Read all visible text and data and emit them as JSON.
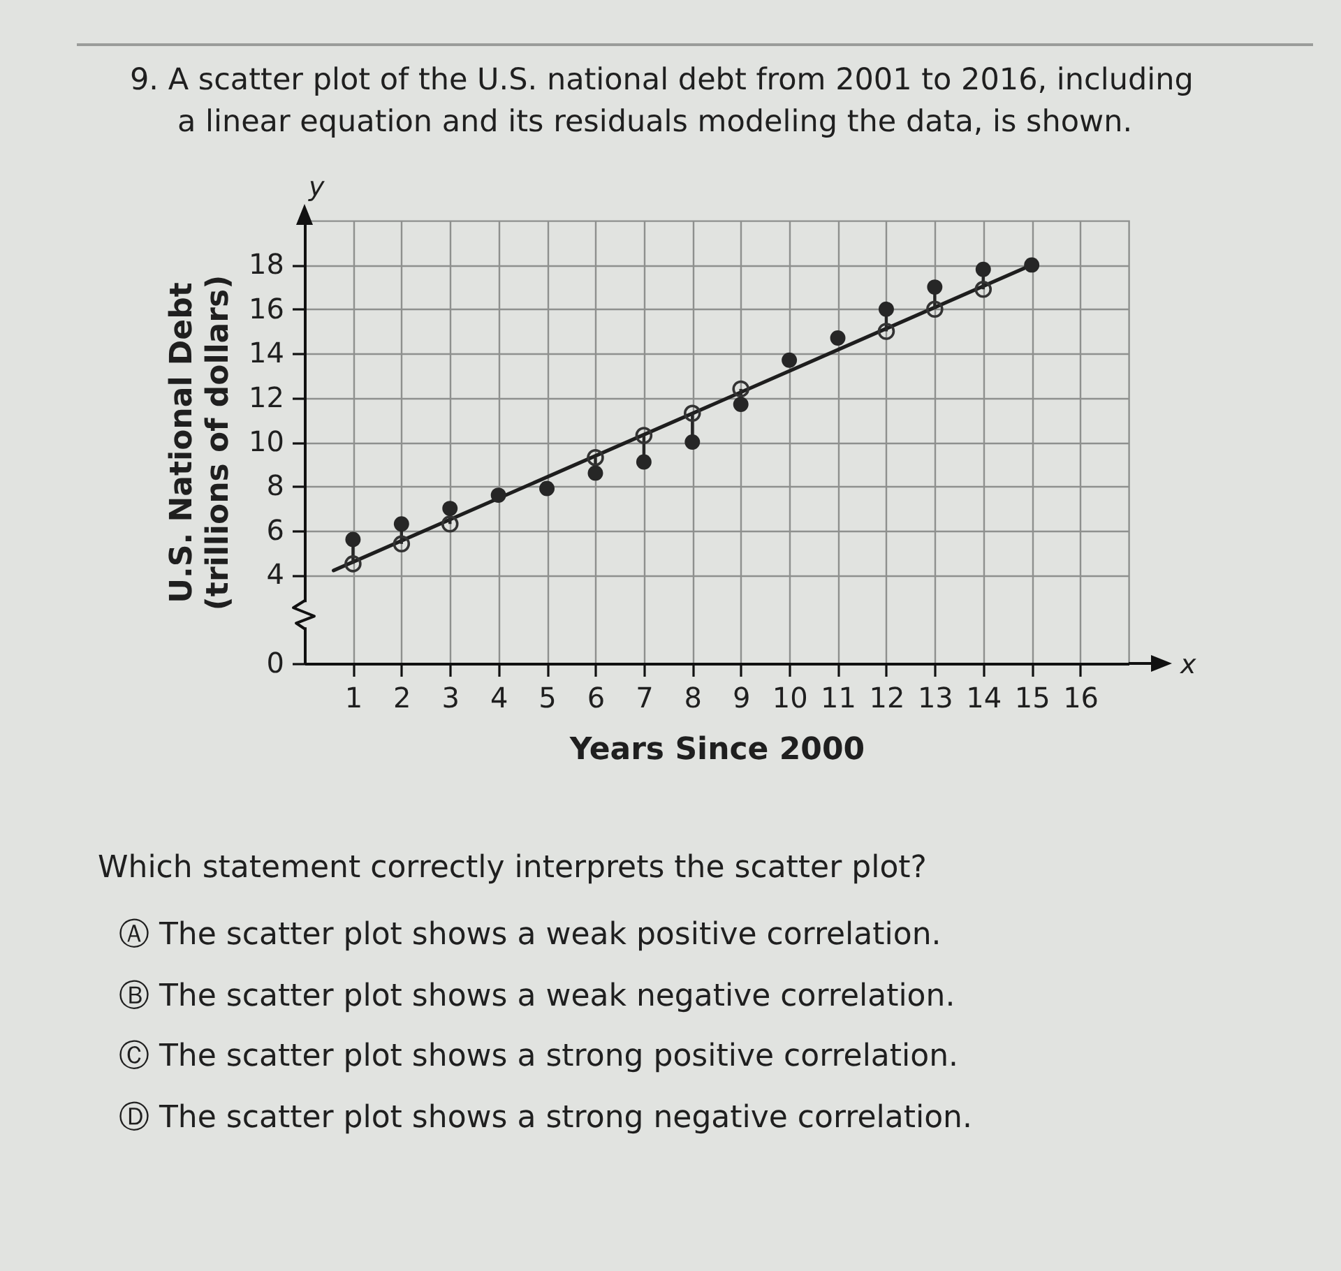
{
  "chart_data": {
    "type": "scatter",
    "title": "9. A scatter plot of the U.S. national debt from 2001 to 2016, including a linear equation and its residuals modeling the data, is shown.",
    "xlabel": "Years Since 2000",
    "ylabel": "U.S. National Debt (trillions of dollars)",
    "annotations": [
      "y",
      "x",
      "Which statement correctly interprets the scatter plot?",
      "Ⓐ The scatter plot shows a weak positive correlation.",
      "Ⓑ The scatter plot shows a weak negative correlation.",
      "Ⓒ The scatter plot shows a strong positive correlation.",
      "Ⓓ The scatter plot shows a strong negative correlation."
    ],
    "x": [
      1,
      2,
      3,
      4,
      5,
      6,
      7,
      8,
      9,
      10,
      11,
      12,
      13,
      14,
      15
    ],
    "series": [
      {
        "color": "#262626",
        "marker": "circle",
        "values": [
          5.6,
          6.3,
          7.0,
          7.6,
          7.9,
          8.6,
          9.1,
          10.0,
          11.7,
          13.7,
          14.7,
          16.0,
          17.0,
          17.8,
          18.0
        ],
        "errors": [
          [
            4.5,
            5.6
          ],
          [
            5.4,
            6.3
          ],
          [
            6.3,
            7.0
          ],
          null,
          null,
          [
            8.6,
            9.3
          ],
          [
            9.1,
            10.3
          ],
          [
            10.0,
            11.3
          ],
          [
            11.7,
            12.4
          ],
          null,
          null,
          [
            15.0,
            16.0
          ],
          [
            16.0,
            17.0
          ],
          [
            16.9,
            17.8
          ],
          null
        ]
      },
      {
        "color": "#333333",
        "marker": "circle",
        "values": [
          4.5,
          5.4,
          6.3,
          null,
          null,
          9.3,
          10.3,
          11.3,
          12.4,
          null,
          null,
          15.0,
          16.0,
          16.9,
          null
        ]
      },
      {
        "type": "line",
        "color": "#1e1e1e",
        "x": [
          0.6,
          15
        ],
        "values": [
          4.2,
          18.0
        ]
      }
    ],
    "xlim": [
      0,
      17
    ],
    "xticks": [
      1,
      2,
      3,
      4,
      5,
      6,
      7,
      8,
      9,
      10,
      11,
      12,
      13,
      14,
      15,
      16
    ],
    "ylim": [
      0,
      20
    ],
    "yticks": [
      0,
      4,
      6,
      8,
      10,
      12,
      14,
      16,
      18
    ],
    "grid": true
  }
}
